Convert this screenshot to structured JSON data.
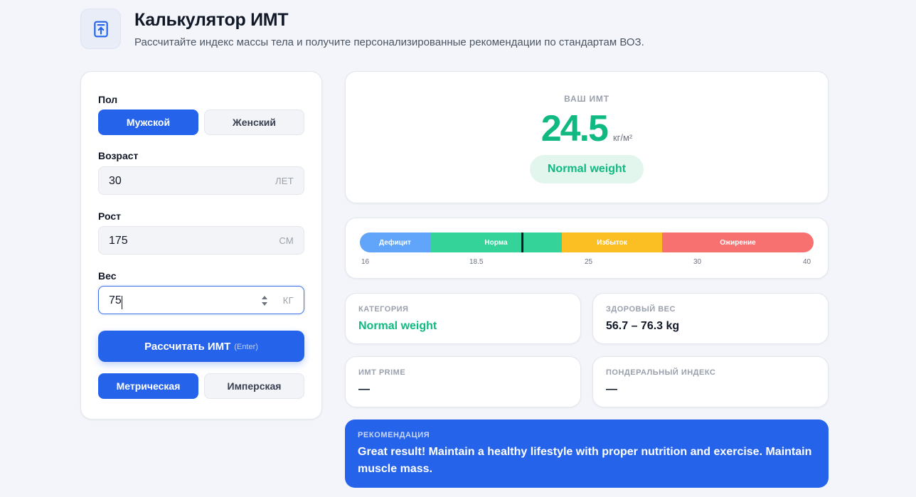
{
  "header": {
    "logo_icon": "upload-box-icon",
    "title": "Калькулятор ИМТ",
    "subtitle": "Рассчитайте индекс массы тела и получите персонализированные рекомендации по стандартам ВОЗ."
  },
  "form": {
    "gender": {
      "label": "Пол",
      "male": "Мужской",
      "female": "Женский",
      "selected": "male"
    },
    "age": {
      "label": "Возраст",
      "value": "30",
      "unit": "ЛЕТ"
    },
    "height": {
      "label": "Рост",
      "value": "175",
      "unit": "СМ"
    },
    "weight": {
      "label": "Вес",
      "value": "75",
      "unit": "КГ"
    },
    "calculate": {
      "label": "Рассчитать ИМТ",
      "hint": "(Enter)"
    },
    "units": {
      "metric": "Метрическая",
      "imperial": "Имперская",
      "selected": "metric"
    }
  },
  "result": {
    "caption": "ВАШ ИМТ",
    "value": "24.5",
    "unit": "кг/м²",
    "category": "Normal weight"
  },
  "scale": {
    "marker_value": 24.5,
    "segments": [
      {
        "label": "Дефицит",
        "color": "#60a5fa"
      },
      {
        "label": "Норма",
        "color": "#34d399"
      },
      {
        "label": "Избыток",
        "color": "#fbbf24"
      },
      {
        "label": "Ожирение",
        "color": "#f87171"
      }
    ],
    "ticks": [
      "16",
      "18.5",
      "25",
      "30",
      "40"
    ]
  },
  "stats": {
    "category": {
      "caption": "КАТЕГОРИЯ",
      "value": "Normal weight"
    },
    "healthy_weight": {
      "caption": "ЗДОРОВЫЙ ВЕС",
      "value": "56.7 – 76.3 kg"
    },
    "bmi_prime": {
      "caption": "ИМТ PRIME",
      "value": "—"
    },
    "ponderal": {
      "caption": "ПОНДЕРАЛЬНЫЙ ИНДЕКС",
      "value": "—"
    }
  },
  "recommendation": {
    "caption": "РЕКОМЕНДАЦИЯ",
    "text": "Great result! Maintain a healthy lifestyle with proper nutrition and exercise. Maintain muscle mass."
  },
  "colors": {
    "accent": "#2563eb",
    "normal": "#10b981"
  }
}
